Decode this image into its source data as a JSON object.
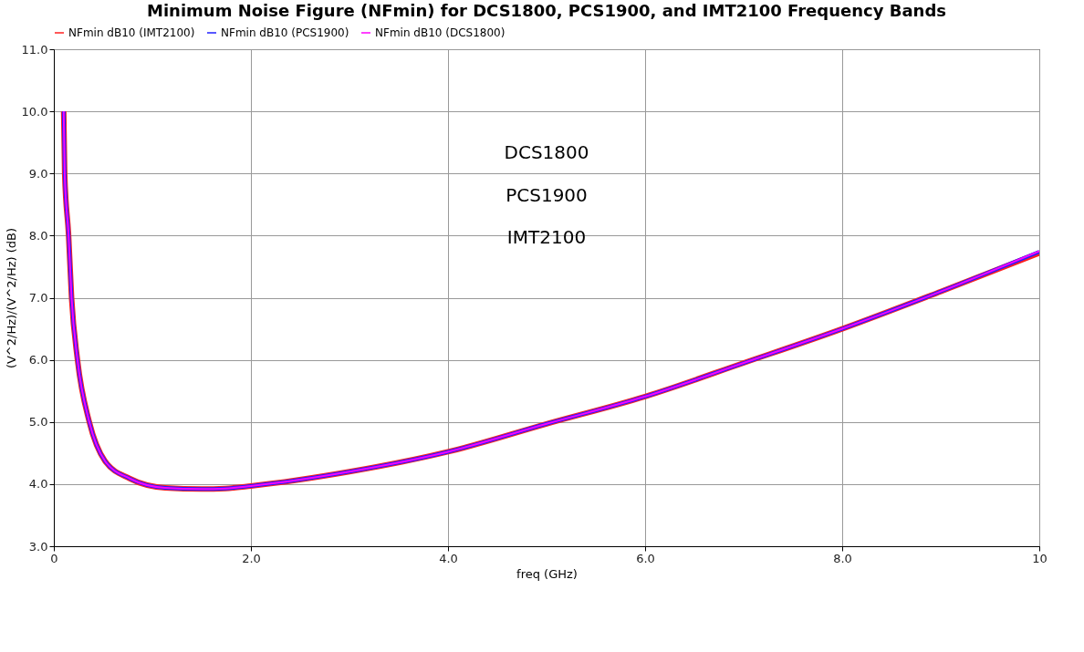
{
  "chart_data": {
    "type": "line",
    "title": "Minimum Noise Figure (NFmin) for DCS1800, PCS1900, and IMT2100 Frequency Bands",
    "xlabel": "freq (GHz)",
    "ylabel": "(V^2/Hz)/(V^2/Hz) (dB)",
    "x": [
      0.1,
      0.11,
      0.15,
      0.18,
      0.24,
      0.36,
      0.52,
      0.77,
      1.13,
      1.5,
      1.74,
      2.0,
      3.0,
      4.0,
      5.0,
      6.0,
      7.0,
      8.0,
      9.0,
      10.0
    ],
    "series": [
      {
        "name": "NFmin dB10 (IMT2100)",
        "color": "#ff2020",
        "values": [
          10.0,
          9.0,
          8.0,
          7.0,
          6.0,
          5.0,
          4.37,
          4.09,
          3.94,
          3.92,
          3.93,
          3.97,
          4.2,
          4.52,
          4.97,
          5.41,
          5.95,
          6.5,
          7.1,
          7.72
        ]
      },
      {
        "name": "NFmin dB10 (PCS1900)",
        "color": "#2020ff",
        "values": [
          10.0,
          9.0,
          8.0,
          7.0,
          6.0,
          5.0,
          4.37,
          4.09,
          3.94,
          3.92,
          3.93,
          3.97,
          4.2,
          4.52,
          4.97,
          5.41,
          5.95,
          6.5,
          7.1,
          7.74
        ]
      },
      {
        "name": "NFmin dB10 (DCS1800)",
        "color": "#ff00ff",
        "values": [
          10.0,
          9.0,
          8.0,
          7.0,
          6.0,
          5.0,
          4.37,
          4.09,
          3.94,
          3.92,
          3.93,
          3.97,
          4.2,
          4.52,
          4.97,
          5.41,
          5.95,
          6.5,
          7.1,
          7.75
        ]
      }
    ],
    "annotations": [
      "DCS1800",
      "PCS1900",
      "IMT2100"
    ],
    "xlim": [
      0,
      10
    ],
    "xticks": [
      0,
      {
        "value": 2,
        "label": "2.0"
      },
      {
        "value": 4,
        "label": "4.0"
      },
      {
        "value": 6,
        "label": "6.0"
      },
      {
        "value": 8,
        "label": "8.0"
      },
      10
    ],
    "ylim": [
      3,
      11
    ],
    "yticks": [
      {
        "value": 3,
        "label": "3.0"
      },
      {
        "value": 4,
        "label": "4.0"
      },
      {
        "value": 5,
        "label": "5.0"
      },
      {
        "value": 6,
        "label": "6.0"
      },
      {
        "value": 7,
        "label": "7.0"
      },
      {
        "value": 8,
        "label": "8.0"
      },
      {
        "value": 9,
        "label": "9.0"
      },
      {
        "value": 10,
        "label": "10.0"
      },
      {
        "value": 11,
        "label": "11.0"
      }
    ],
    "grid": true,
    "legend": "top left",
    "line_style": "solid"
  }
}
